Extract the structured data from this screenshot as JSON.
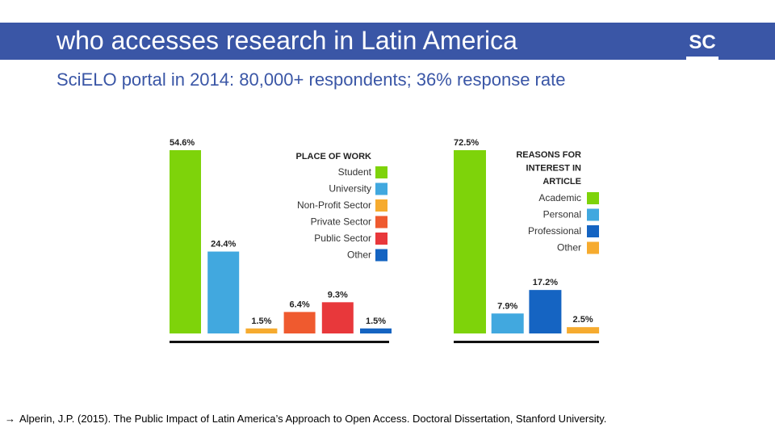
{
  "slide": {
    "title": "who accesses research in Latin America",
    "subtitle": "SciELO portal in 2014: 80,000+ respondents; 36% response rate",
    "logo_text": "SC",
    "footnote_arrow": "→",
    "footnote": "Alperin, J.P. (2015). The Public Impact of Latin America’s Approach to Open Access. Doctoral Dissertation, Stanford University."
  },
  "colors": {
    "title_bar": "#3a56a6",
    "subtitle": "#3a56a6",
    "green": "#7ed30a",
    "light_blue": "#41a8df",
    "orange": "#f6ab2f",
    "red_orange": "#ef5a2f",
    "red": "#e8383b",
    "dark_blue": "#1564c2"
  },
  "chart_data": [
    {
      "type": "bar",
      "title": "PLACE OF WORK",
      "categories": [
        "Student",
        "University",
        "Non-Profit Sector",
        "Private Sector",
        "Public Sector",
        "Other"
      ],
      "values": [
        54.6,
        24.4,
        1.5,
        6.4,
        9.3,
        1.5
      ],
      "value_labels": [
        "54.6%",
        "24.4%",
        "1.5%",
        "6.4%",
        "9.3%",
        "1.5%"
      ],
      "colors": [
        "#7ed30a",
        "#41a8df",
        "#f6ab2f",
        "#ef5a2f",
        "#e8383b",
        "#1564c2"
      ],
      "legend": "top-right",
      "ylim": [
        0,
        54.6
      ]
    },
    {
      "type": "bar",
      "title": "REASONS FOR INTEREST IN ARTICLE",
      "title_lines": [
        "REASONS FOR",
        "INTEREST IN",
        "ARTICLE"
      ],
      "categories": [
        "Academic",
        "Personal",
        "Professional",
        "Other"
      ],
      "values": [
        72.5,
        7.9,
        17.2,
        2.5
      ],
      "value_labels": [
        "72.5%",
        "7.9%",
        "17.2%",
        "2.5%"
      ],
      "colors": [
        "#7ed30a",
        "#41a8df",
        "#1564c2",
        "#f6ab2f"
      ],
      "legend": "top-right",
      "ylim": [
        0,
        72.5
      ]
    }
  ]
}
